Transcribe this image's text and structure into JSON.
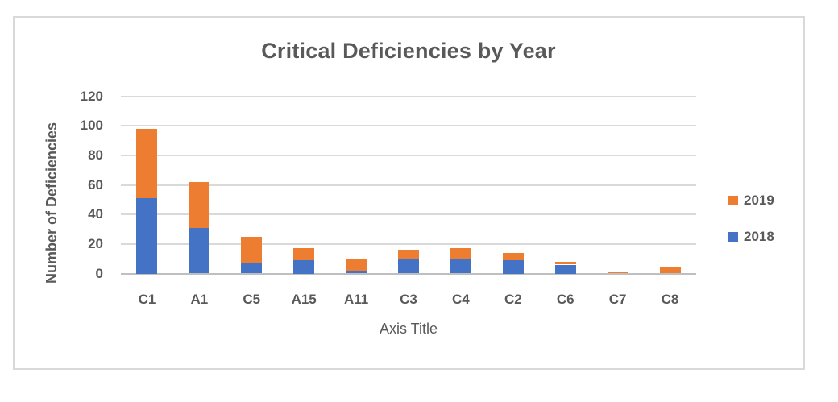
{
  "chart": {
    "title": "Critical Deficiencies by Year",
    "x_axis_title": "Axis Title",
    "y_axis_title": "Number of Deficiencies",
    "legend": [
      {
        "label": "2019",
        "color": "#ED7D31"
      },
      {
        "label": "2018",
        "color": "#4472C4"
      }
    ]
  },
  "chart_data": {
    "type": "bar",
    "stacked": true,
    "title": "Critical Deficiencies by Year",
    "xlabel": "Axis Title",
    "ylabel": "Number of Deficiencies",
    "categories": [
      "C1",
      "A1",
      "C5",
      "A15",
      "A11",
      "C3",
      "C4",
      "C2",
      "C6",
      "C7",
      "C8"
    ],
    "series": [
      {
        "name": "2018",
        "color": "#4472C4",
        "values": [
          51,
          31,
          7,
          9,
          2,
          10,
          10,
          9,
          6,
          0,
          0
        ]
      },
      {
        "name": "2019",
        "color": "#ED7D31",
        "values": [
          47,
          31,
          18,
          8,
          8,
          6,
          7,
          5,
          2,
          1,
          4
        ]
      }
    ],
    "totals": [
      98,
      62,
      25,
      17,
      10,
      16,
      17,
      14,
      8,
      1,
      4
    ],
    "ylim": [
      0,
      120
    ],
    "yticks": [
      0,
      20,
      40,
      60,
      80,
      100,
      120
    ],
    "grid": true,
    "legend_position": "right"
  },
  "colors": {
    "series_2018": "#4472C4",
    "series_2019": "#ED7D31",
    "gridline": "#D9D9D9",
    "axis_line": "#BFBFBF",
    "text": "#595959",
    "frame_border": "#D9D9D9",
    "background": "#FFFFFF"
  }
}
